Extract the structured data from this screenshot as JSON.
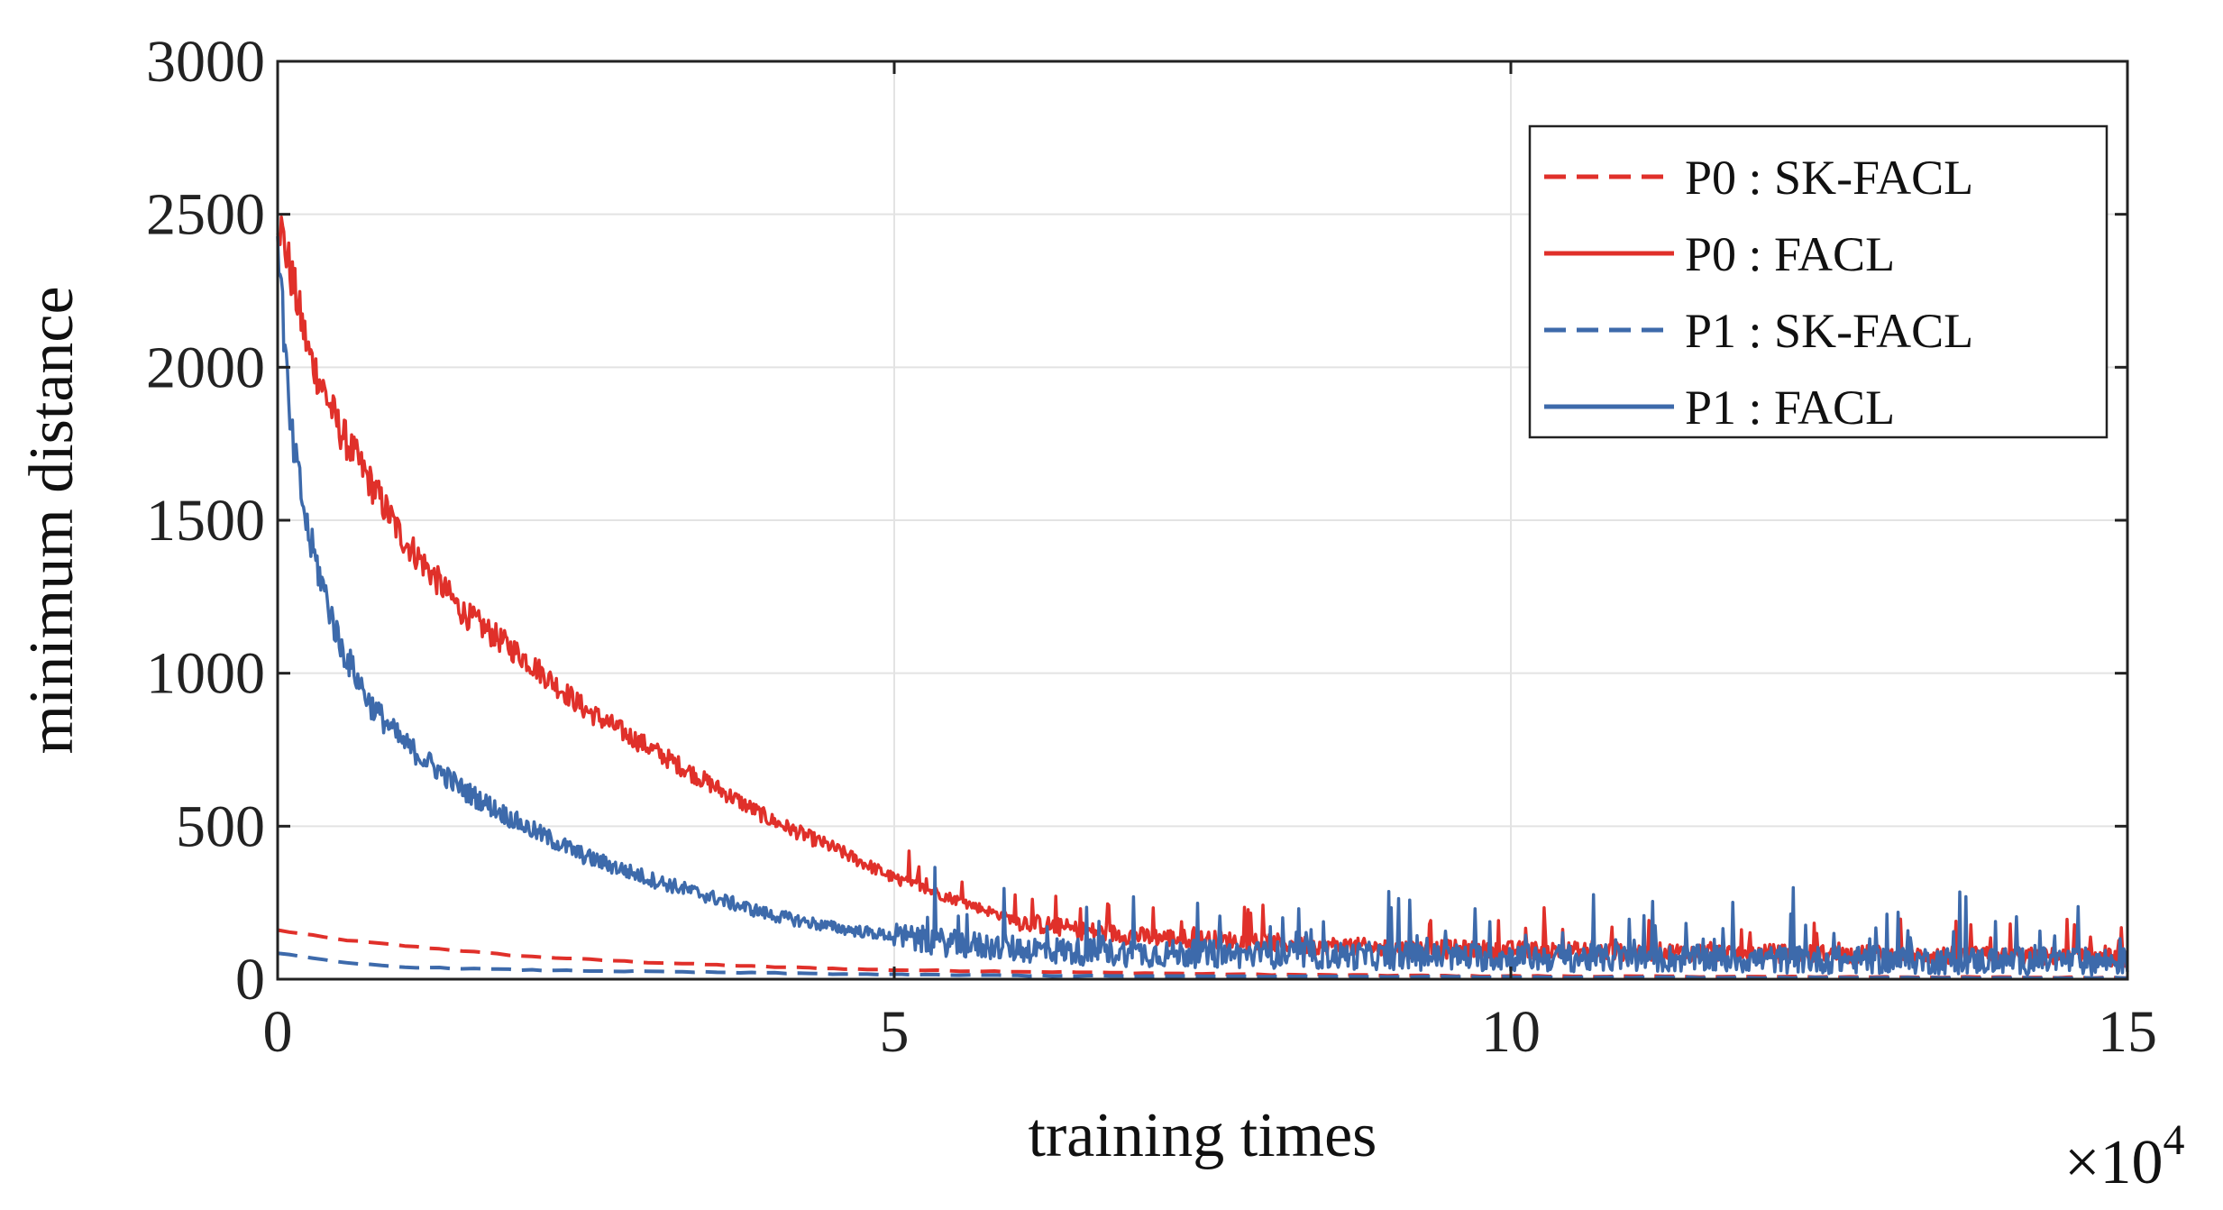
{
  "chart_data": {
    "type": "line",
    "title": "",
    "xlabel": "training times",
    "ylabel": "minimum distance",
    "x_multiplier_label": "×10",
    "x_multiplier_exponent": "4",
    "xlim": [
      0,
      15
    ],
    "ylim": [
      0,
      3000
    ],
    "x_ticks": [
      0,
      5,
      10,
      15
    ],
    "x_tick_labels": [
      "0",
      "5",
      "10",
      "15"
    ],
    "y_ticks": [
      0,
      500,
      1000,
      1500,
      2000,
      2500,
      3000
    ],
    "y_tick_labels": [
      "0",
      "500",
      "1000",
      "1500",
      "2000",
      "2500",
      "3000"
    ],
    "grid": true,
    "legend_position": "top-right",
    "series": [
      {
        "name": "P0 : SK-FACL",
        "color": "#e0302a",
        "style": "dashed",
        "x": [
          0,
          0.5,
          1,
          2,
          3,
          4,
          5,
          6,
          7,
          8,
          9,
          10,
          11,
          12,
          13,
          14,
          15
        ],
        "y": [
          160,
          130,
          110,
          75,
          55,
          40,
          30,
          25,
          20,
          15,
          12,
          10,
          9,
          8,
          7,
          6,
          5
        ]
      },
      {
        "name": "P0 : FACL",
        "color": "#e0302a",
        "style": "solid",
        "x": [
          0,
          0.25,
          0.5,
          1,
          1.5,
          2,
          2.5,
          3,
          3.5,
          4,
          4.5,
          5,
          5.5,
          6,
          6.5,
          7,
          8,
          9,
          10,
          11,
          12,
          13,
          14,
          15
        ],
        "y": [
          2500,
          2050,
          1800,
          1450,
          1200,
          1050,
          880,
          760,
          640,
          520,
          430,
          330,
          260,
          190,
          160,
          140,
          120,
          100,
          95,
          90,
          85,
          80,
          75,
          70
        ]
      },
      {
        "name": "P1 : SK-FACL",
        "color": "#3d6aab",
        "style": "dashed",
        "x": [
          0,
          0.5,
          1,
          2,
          3,
          4,
          5,
          6,
          7,
          8,
          9,
          10,
          11,
          12,
          13,
          14,
          15
        ],
        "y": [
          85,
          55,
          40,
          30,
          25,
          20,
          15,
          12,
          10,
          9,
          8,
          7,
          6,
          5,
          5,
          4,
          4
        ]
      },
      {
        "name": "P1 : FACL",
        "color": "#3d6aab",
        "style": "solid",
        "x": [
          0,
          0.1,
          0.25,
          0.5,
          0.75,
          1,
          1.5,
          2,
          2.5,
          3,
          3.5,
          4,
          4.5,
          5,
          5.5,
          6,
          6.5,
          7,
          8,
          9,
          10,
          11,
          12,
          13,
          14,
          15
        ],
        "y": [
          2450,
          1800,
          1450,
          1100,
          900,
          780,
          620,
          500,
          400,
          330,
          270,
          210,
          170,
          140,
          115,
          100,
          90,
          85,
          80,
          75,
          70,
          68,
          65,
          62,
          60,
          58
        ]
      }
    ]
  }
}
